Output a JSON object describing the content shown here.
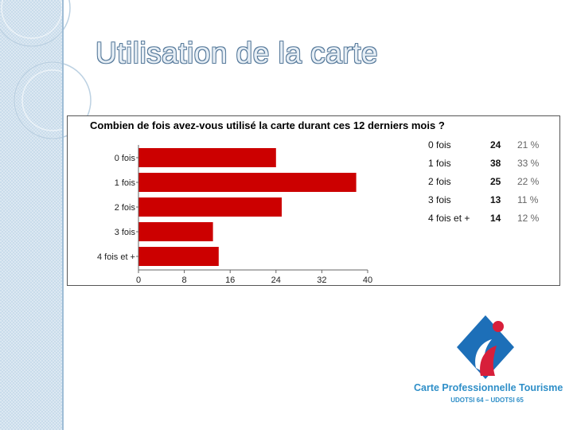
{
  "slide": {
    "title": "Utilisation de la carte"
  },
  "chart_data": {
    "type": "bar",
    "orientation": "horizontal",
    "title": "Combien de fois avez-vous utilisé la carte durant ces 12 derniers mois ?",
    "categories": [
      "0 fois",
      "1 fois",
      "2 fois",
      "3 fois",
      "4 fois et +"
    ],
    "values": [
      24,
      38,
      25,
      13,
      14
    ],
    "xlim": [
      0,
      40
    ],
    "xticks": [
      "0",
      "8",
      "16",
      "24",
      "32",
      "40"
    ],
    "bar_color": "#cc0000",
    "grid": false,
    "table": {
      "rows": [
        {
          "label": "0 fois",
          "count": "24",
          "percent": "21 %"
        },
        {
          "label": "1 fois",
          "count": "38",
          "percent": "33 %"
        },
        {
          "label": "2 fois",
          "count": "25",
          "percent": "22 %"
        },
        {
          "label": "3 fois",
          "count": "13",
          "percent": "11 %"
        },
        {
          "label": "4 fois et +",
          "count": "14",
          "percent": "12 %"
        }
      ]
    }
  },
  "logo": {
    "name": "Carte Professionnelle Tourisme",
    "subtitle": "UDOTSI 64 – UDOTSI 65",
    "colors": {
      "blue": "#1d6fb8",
      "red": "#d71f3a"
    }
  }
}
